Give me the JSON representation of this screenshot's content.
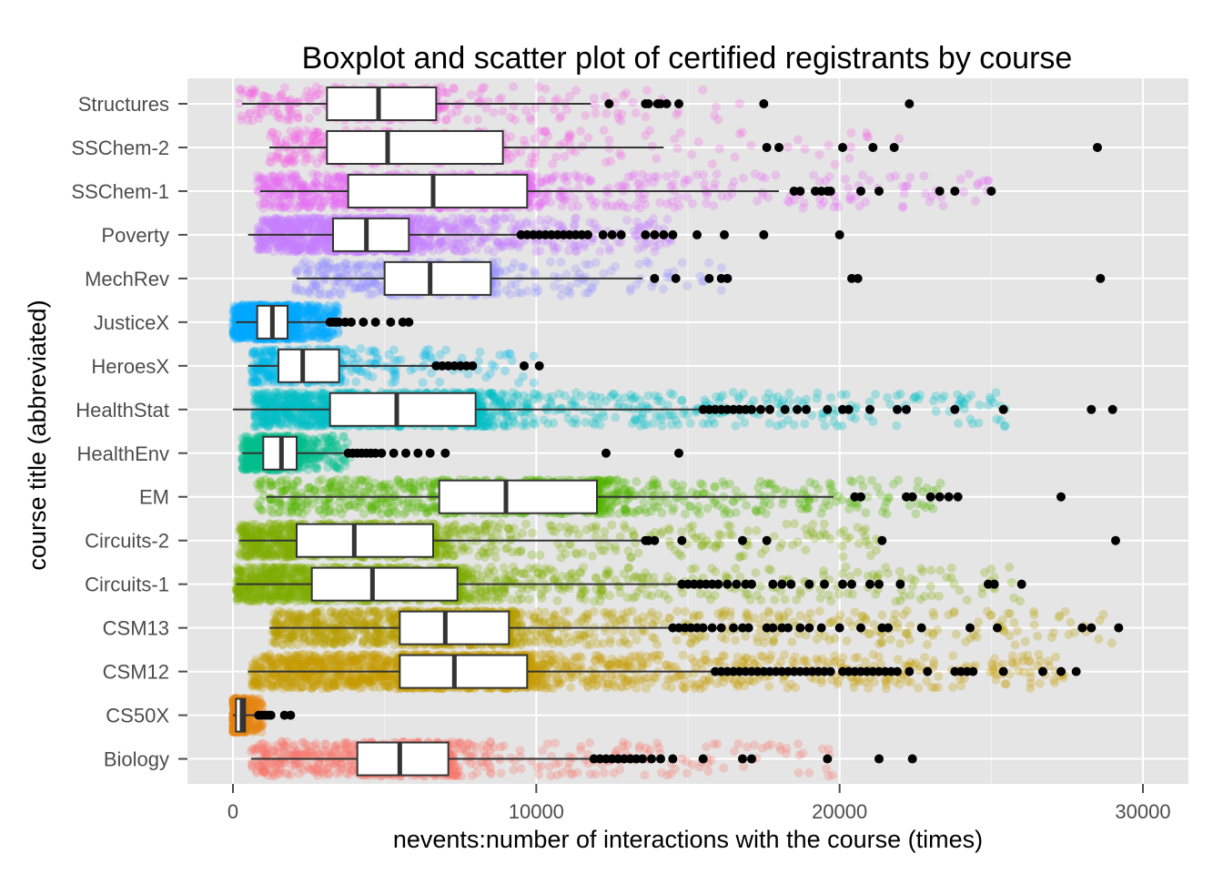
{
  "chart_data": {
    "type": "boxplot",
    "title": "Boxplot and scatter plot of certified registrants by course",
    "xlabel": "nevents:number of interactions with the course (times)",
    "ylabel": "course title (abbreviated)",
    "xlim": [
      -1500,
      31500
    ],
    "xticks": [
      0,
      10000,
      20000,
      30000
    ],
    "xtick_labels": [
      "0",
      "10000",
      "20000",
      "30000"
    ],
    "grid": true,
    "legend": "none",
    "panel_color": "#e5e5e5",
    "grid_color": "#ffffff",
    "categories": [
      "Structures",
      "SSChem-2",
      "SSChem-1",
      "Poverty",
      "MechRev",
      "JusticeX",
      "HeroesX",
      "HealthStat",
      "HealthEnv",
      "EM",
      "Circuits-2",
      "Circuits-1",
      "CSM13",
      "CSM12",
      "CS50X",
      "Biology"
    ],
    "boxes": [
      {
        "course": "Structures",
        "color": "#f564e3",
        "min": 300,
        "q1": 3100,
        "median": 4800,
        "q3": 6700,
        "max": 11800,
        "jitter_min": 200,
        "jitter_max": 16800,
        "jitter_count": 320,
        "outliers": [
          12400,
          13600,
          13700,
          14000,
          14100,
          14300,
          14700,
          17500,
          22300
        ]
      },
      {
        "course": "SSChem-2",
        "color": "#f564e3",
        "min": 1200,
        "q1": 3100,
        "median": 5100,
        "q3": 8900,
        "max": 14200,
        "jitter_min": 1200,
        "jitter_max": 22500,
        "jitter_count": 300,
        "outliers": [
          17600,
          18000,
          20100,
          21100,
          21800,
          28500
        ]
      },
      {
        "course": "SSChem-1",
        "color": "#e76bf3",
        "min": 900,
        "q1": 3800,
        "median": 6600,
        "q3": 9700,
        "max": 18000,
        "jitter_min": 800,
        "jitter_max": 25000,
        "jitter_count": 900,
        "outliers": [
          18500,
          18700,
          19200,
          19400,
          19600,
          19700,
          20700,
          21300,
          23300,
          23800,
          25000
        ]
      },
      {
        "course": "Poverty",
        "color": "#c77cff",
        "min": 500,
        "q1": 3300,
        "median": 4400,
        "q3": 5800,
        "max": 9400,
        "jitter_min": 800,
        "jitter_max": 14500,
        "jitter_count": 1400,
        "outliers": [
          9500,
          9700,
          9900,
          10100,
          10300,
          10500,
          10700,
          10900,
          11100,
          11300,
          11500,
          11700,
          12200,
          12500,
          12800,
          13600,
          13900,
          14200,
          14500,
          15300,
          16200,
          17500,
          20000
        ]
      },
      {
        "course": "MechRev",
        "color": "#9590ff",
        "min": 2100,
        "q1": 5000,
        "median": 6500,
        "q3": 8500,
        "max": 13500,
        "jitter_min": 2000,
        "jitter_max": 16500,
        "jitter_count": 420,
        "outliers": [
          13900,
          14600,
          15700,
          16100,
          16300,
          20400,
          20600,
          28600
        ]
      },
      {
        "course": "JusticeX",
        "color": "#00a9ff",
        "min": 100,
        "q1": 800,
        "median": 1300,
        "q3": 1800,
        "max": 3100,
        "jitter_min": 0,
        "jitter_max": 3500,
        "jitter_count": 1300,
        "outliers": [
          3200,
          3300,
          3400,
          3500,
          3700,
          3900,
          4300,
          4700,
          5200,
          5600,
          5800
        ]
      },
      {
        "course": "HeroesX",
        "color": "#00b8e7",
        "min": 500,
        "q1": 1500,
        "median": 2300,
        "q3": 3500,
        "max": 6600,
        "jitter_min": 600,
        "jitter_max": 10000,
        "jitter_count": 420,
        "outliers": [
          6700,
          6900,
          7100,
          7300,
          7500,
          7700,
          7900,
          9600,
          10100
        ]
      },
      {
        "course": "HealthStat",
        "color": "#00bfc4",
        "min": 0,
        "q1": 3200,
        "median": 5400,
        "q3": 8000,
        "max": 15400,
        "jitter_min": 700,
        "jitter_max": 25500,
        "jitter_count": 1600,
        "outliers": [
          15500,
          15700,
          15900,
          16100,
          16300,
          16500,
          16700,
          16900,
          17100,
          17400,
          17700,
          18200,
          18600,
          18900,
          19600,
          20100,
          20300,
          21000,
          21900,
          22200,
          23800,
          25400,
          28300,
          29000
        ]
      },
      {
        "course": "HealthEnv",
        "color": "#00c08b",
        "min": 300,
        "q1": 1000,
        "median": 1600,
        "q3": 2100,
        "max": 3700,
        "jitter_min": 300,
        "jitter_max": 3900,
        "jitter_count": 700,
        "outliers": [
          3800,
          3950,
          4100,
          4250,
          4400,
          4550,
          4700,
          4900,
          5300,
          5700,
          6100,
          6500,
          7000,
          12300,
          14700
        ]
      },
      {
        "course": "EM",
        "color": "#53b400",
        "min": 1100,
        "q1": 6800,
        "median": 9000,
        "q3": 12000,
        "max": 19800,
        "jitter_min": 800,
        "jitter_max": 23500,
        "jitter_count": 1100,
        "outliers": [
          20500,
          20700,
          22200,
          22400,
          23000,
          23300,
          23600,
          23900,
          27300
        ]
      },
      {
        "course": "Circuits-2",
        "color": "#7cae00",
        "min": 200,
        "q1": 2100,
        "median": 4000,
        "q3": 6600,
        "max": 13500,
        "jitter_min": 200,
        "jitter_max": 21500,
        "jitter_count": 1100,
        "outliers": [
          13600,
          13700,
          13900,
          14800,
          16800,
          17600,
          21400,
          29100
        ]
      },
      {
        "course": "Circuits-1",
        "color": "#7cae00",
        "min": 100,
        "q1": 2600,
        "median": 4600,
        "q3": 7400,
        "max": 14700,
        "jitter_min": 100,
        "jitter_max": 26000,
        "jitter_count": 1500,
        "outliers": [
          14800,
          15000,
          15200,
          15400,
          15600,
          15800,
          16000,
          16300,
          16600,
          16900,
          17100,
          17800,
          18100,
          18400,
          19000,
          19500,
          20100,
          20400,
          21000,
          21300,
          22000,
          24900,
          25100,
          26000
        ]
      },
      {
        "course": "CSM13",
        "color": "#b79f00",
        "min": 1200,
        "q1": 5500,
        "median": 7000,
        "q3": 9100,
        "max": 14400,
        "jitter_min": 1300,
        "jitter_max": 29000,
        "jitter_count": 1500,
        "outliers": [
          14500,
          14700,
          14900,
          15100,
          15300,
          15500,
          15800,
          16100,
          16500,
          16800,
          17000,
          17600,
          17800,
          18100,
          18300,
          18700,
          19000,
          19400,
          20000,
          20700,
          21400,
          21600,
          22700,
          24300,
          25200,
          28000,
          28300,
          29200
        ]
      },
      {
        "course": "CSM12",
        "color": "#c49a00",
        "min": 500,
        "q1": 5500,
        "median": 7300,
        "q3": 9700,
        "max": 15800,
        "jitter_min": 600,
        "jitter_max": 27500,
        "jitter_count": 2200,
        "outliers": [
          15900,
          16100,
          16300,
          16500,
          16700,
          16900,
          17100,
          17300,
          17500,
          17700,
          17900,
          18100,
          18300,
          18500,
          18700,
          18900,
          19100,
          19300,
          19500,
          19700,
          20100,
          20300,
          20500,
          20700,
          20900,
          21100,
          21300,
          21500,
          21700,
          21900,
          22300,
          22900,
          23800,
          24000,
          24200,
          24400,
          25400,
          26700,
          27300,
          27800
        ]
      },
      {
        "course": "CS50X",
        "color": "#e68613",
        "min": 0,
        "q1": 100,
        "median": 300,
        "q3": 400,
        "max": 800,
        "jitter_min": 0,
        "jitter_max": 1000,
        "jitter_count": 600,
        "outliers": [
          850,
          950,
          1050,
          1150,
          1250,
          1700,
          1900
        ]
      },
      {
        "course": "Biology",
        "color": "#f8766d",
        "min": 600,
        "q1": 4100,
        "median": 5500,
        "q3": 7100,
        "max": 11800,
        "jitter_min": 600,
        "jitter_max": 19800,
        "jitter_count": 900,
        "outliers": [
          11900,
          12100,
          12300,
          12500,
          12700,
          12900,
          13100,
          13300,
          13500,
          13800,
          14100,
          14500,
          15500,
          16800,
          17100,
          19600,
          21300,
          22400
        ]
      }
    ]
  }
}
